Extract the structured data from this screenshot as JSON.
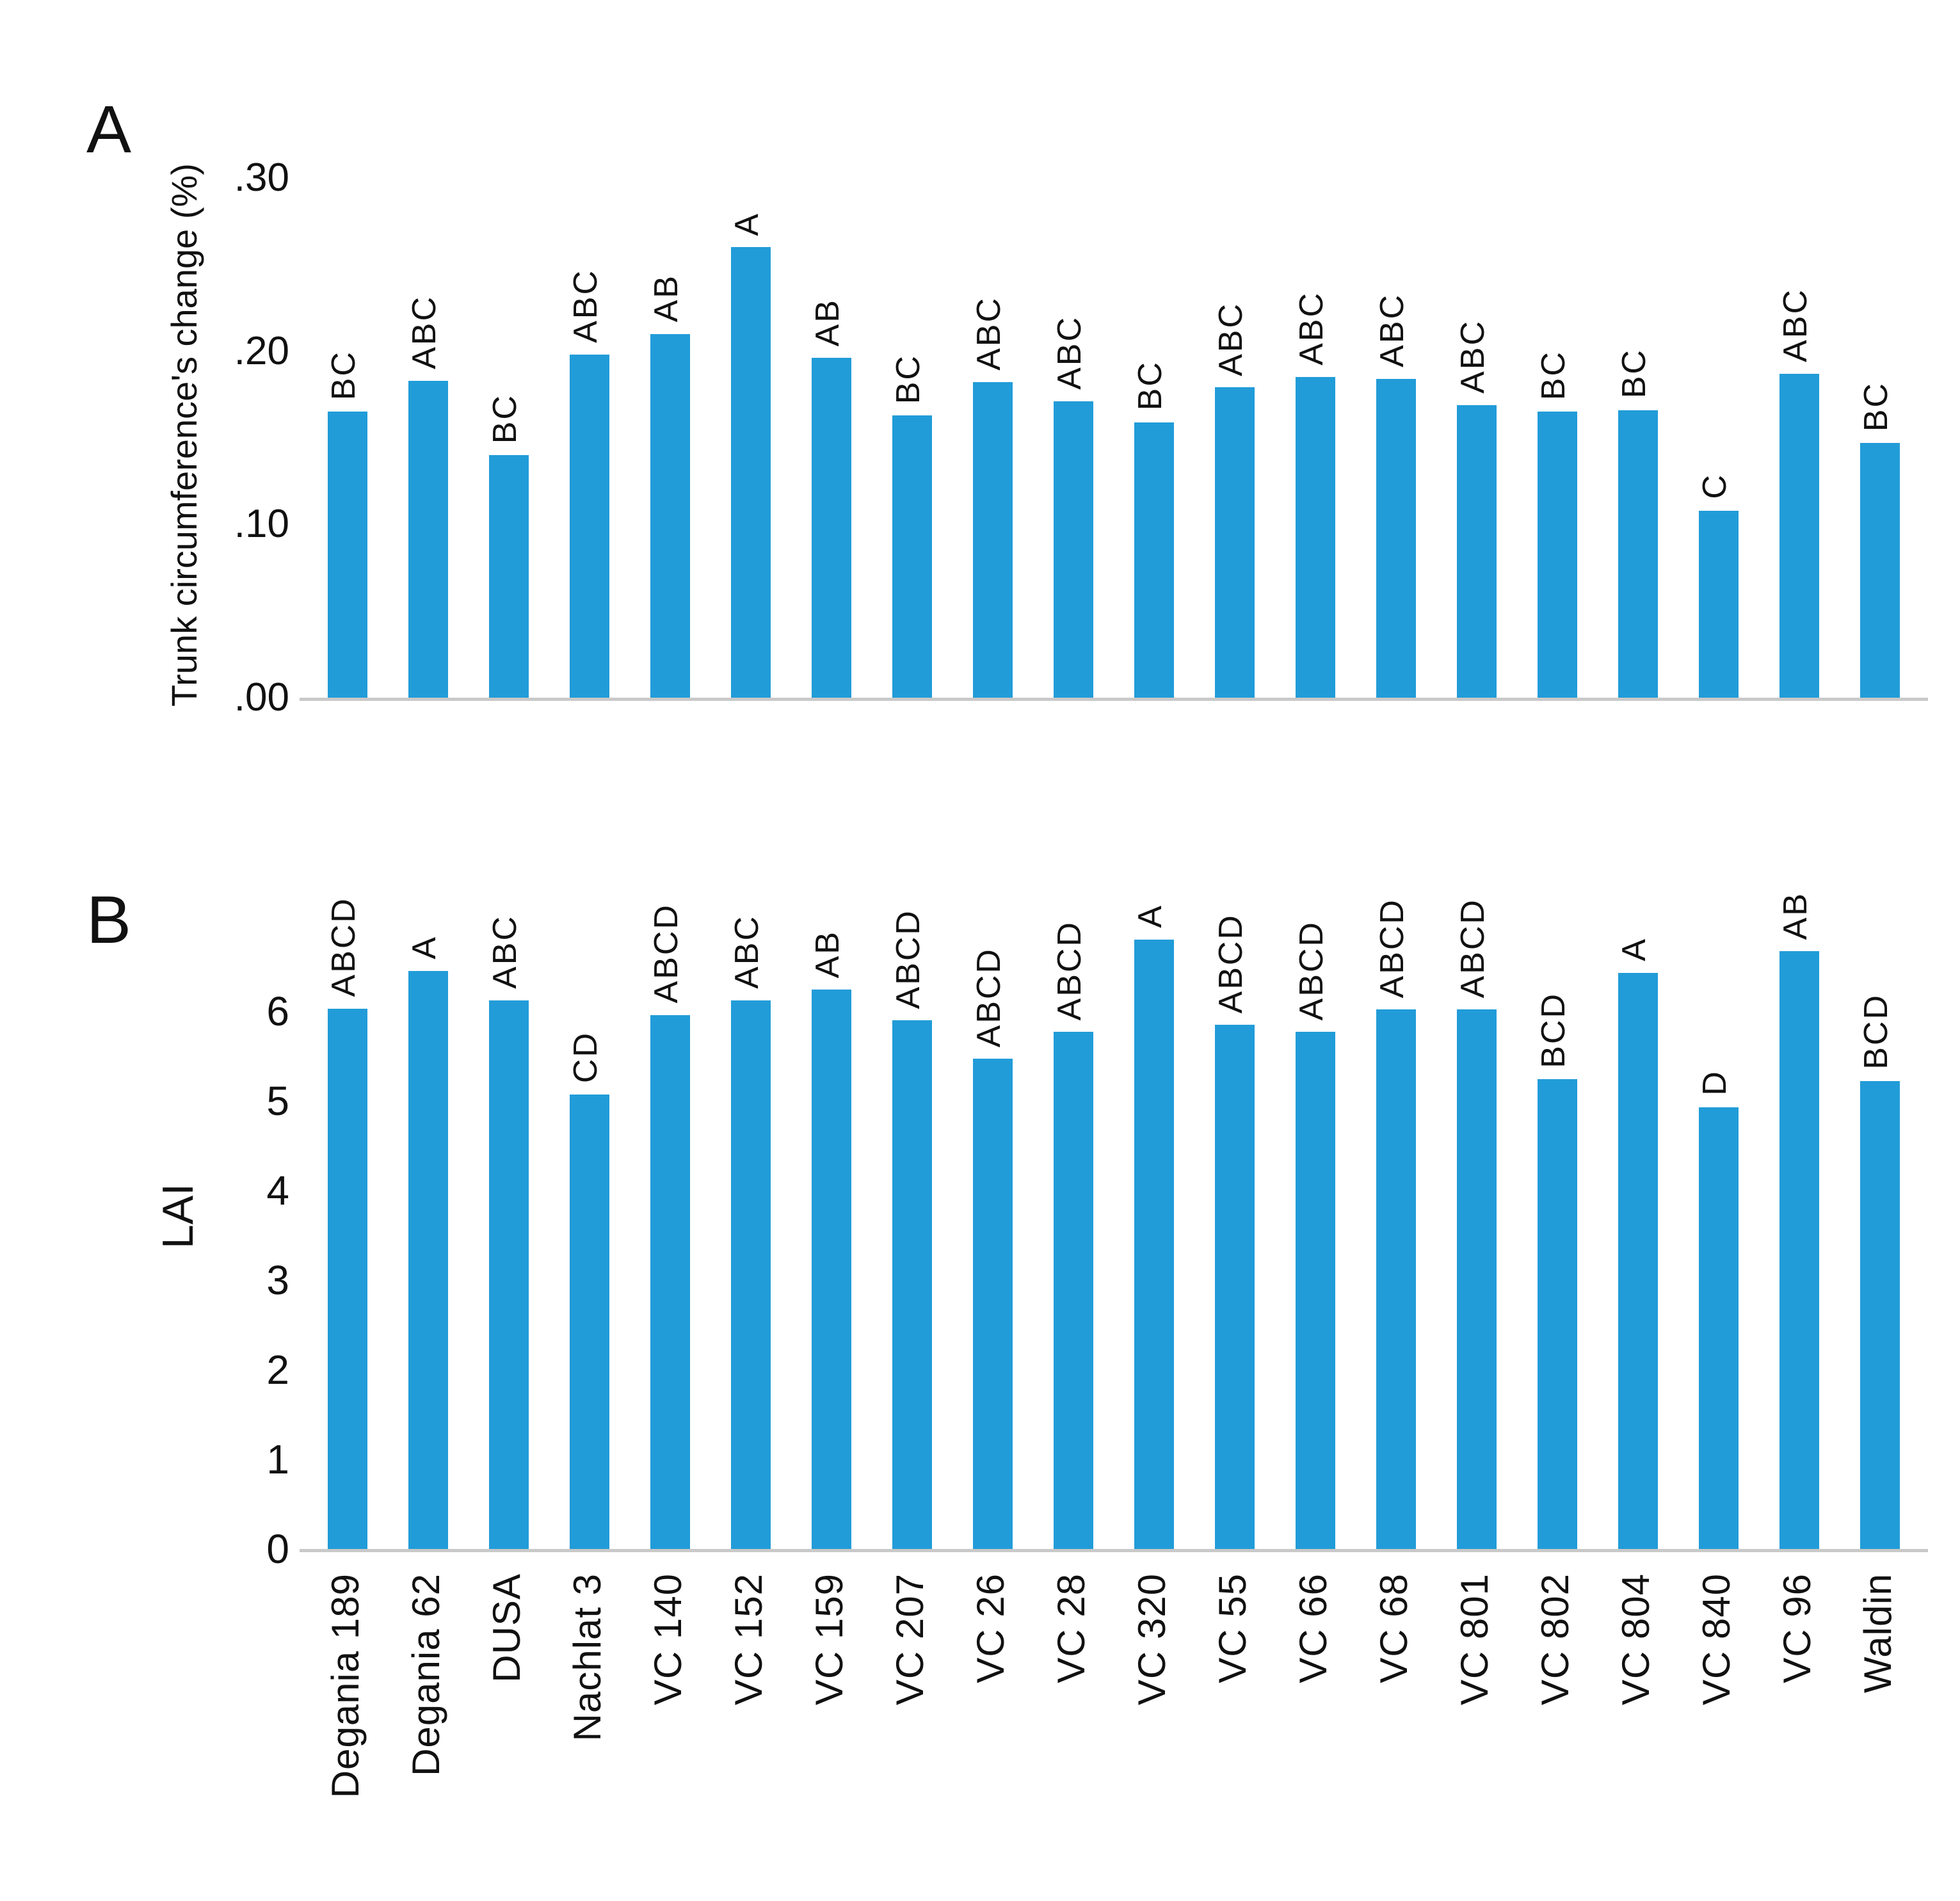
{
  "figure": {
    "background": "#ffffff",
    "bar_color": "#219cd8",
    "axis_line_color": "#c9c9c9",
    "text_color": "#111111"
  },
  "chart_data": [
    {
      "type": "bar",
      "panel_label": "A",
      "title": "",
      "xlabel": "",
      "ylabel": "Trunk circumference's change (%)",
      "ylim": [
        0,
        0.3
      ],
      "grid": "off",
      "legend": "none",
      "bar_color": "#219cd8",
      "yticks": [
        0,
        0.1,
        0.2,
        0.3
      ],
      "ytick_labels": [
        ".00",
        ".10",
        ".20",
        ".30"
      ],
      "categories": [
        "Degania 189",
        "Degania 62",
        "DUSA",
        "Nachlat 3",
        "VC 140",
        "VC 152",
        "VC 159",
        "VC 207",
        "VC 26",
        "VC 28",
        "VC 320",
        "VC 55",
        "VC 66",
        "VC 68",
        "VC 801",
        "VC 802",
        "VC 804",
        "VC 840",
        "VC 96",
        "Waldin"
      ],
      "values": [
        0.165,
        0.183,
        0.14,
        0.198,
        0.21,
        0.26,
        0.196,
        0.163,
        0.182,
        0.171,
        0.159,
        0.179,
        0.185,
        0.184,
        0.169,
        0.165,
        0.166,
        0.108,
        0.187,
        0.147
      ],
      "bar_labels": [
        "BC",
        "ABC",
        "BC",
        "ABC",
        "AB",
        "A",
        "AB",
        "BC",
        "ABC",
        "ABC",
        "BC",
        "ABC",
        "ABC",
        "ABC",
        "ABC",
        "BC",
        "BC",
        "C",
        "ABC",
        "BC"
      ],
      "show_category_labels": false
    },
    {
      "type": "bar",
      "panel_label": "B",
      "title": "",
      "xlabel": "",
      "ylabel": "LAI",
      "ylim": [
        0,
        7
      ],
      "grid": "off",
      "legend": "none",
      "bar_color": "#219cd8",
      "yticks": [
        0,
        1,
        2,
        3,
        4,
        5,
        6
      ],
      "ytick_labels": [
        "0",
        "1",
        "2",
        "3",
        "4",
        "5",
        "6"
      ],
      "categories": [
        "Degania 189",
        "Degania 62",
        "DUSA",
        "Nachlat 3",
        "VC 140",
        "VC 152",
        "VC 159",
        "VC 207",
        "VC 26",
        "VC 28",
        "VC 320",
        "VC 55",
        "VC 66",
        "VC 68",
        "VC 801",
        "VC 802",
        "VC 804",
        "VC 840",
        "VC 96",
        "Waldin"
      ],
      "values": [
        6.03,
        6.45,
        6.12,
        5.07,
        5.96,
        6.12,
        6.24,
        5.9,
        5.47,
        5.77,
        6.8,
        5.85,
        5.77,
        6.02,
        6.02,
        5.24,
        6.43,
        4.93,
        6.67,
        5.22
      ],
      "bar_labels": [
        "ABCD",
        "A",
        "ABC",
        "CD",
        "ABCD",
        "ABC",
        "AB",
        "ABCD",
        "ABCD",
        "ABCD",
        "A",
        "ABCD",
        "ABCD",
        "ABCD",
        "ABCD",
        "BCD",
        "A",
        "D",
        "AB",
        "BCD"
      ],
      "show_category_labels": true
    }
  ]
}
